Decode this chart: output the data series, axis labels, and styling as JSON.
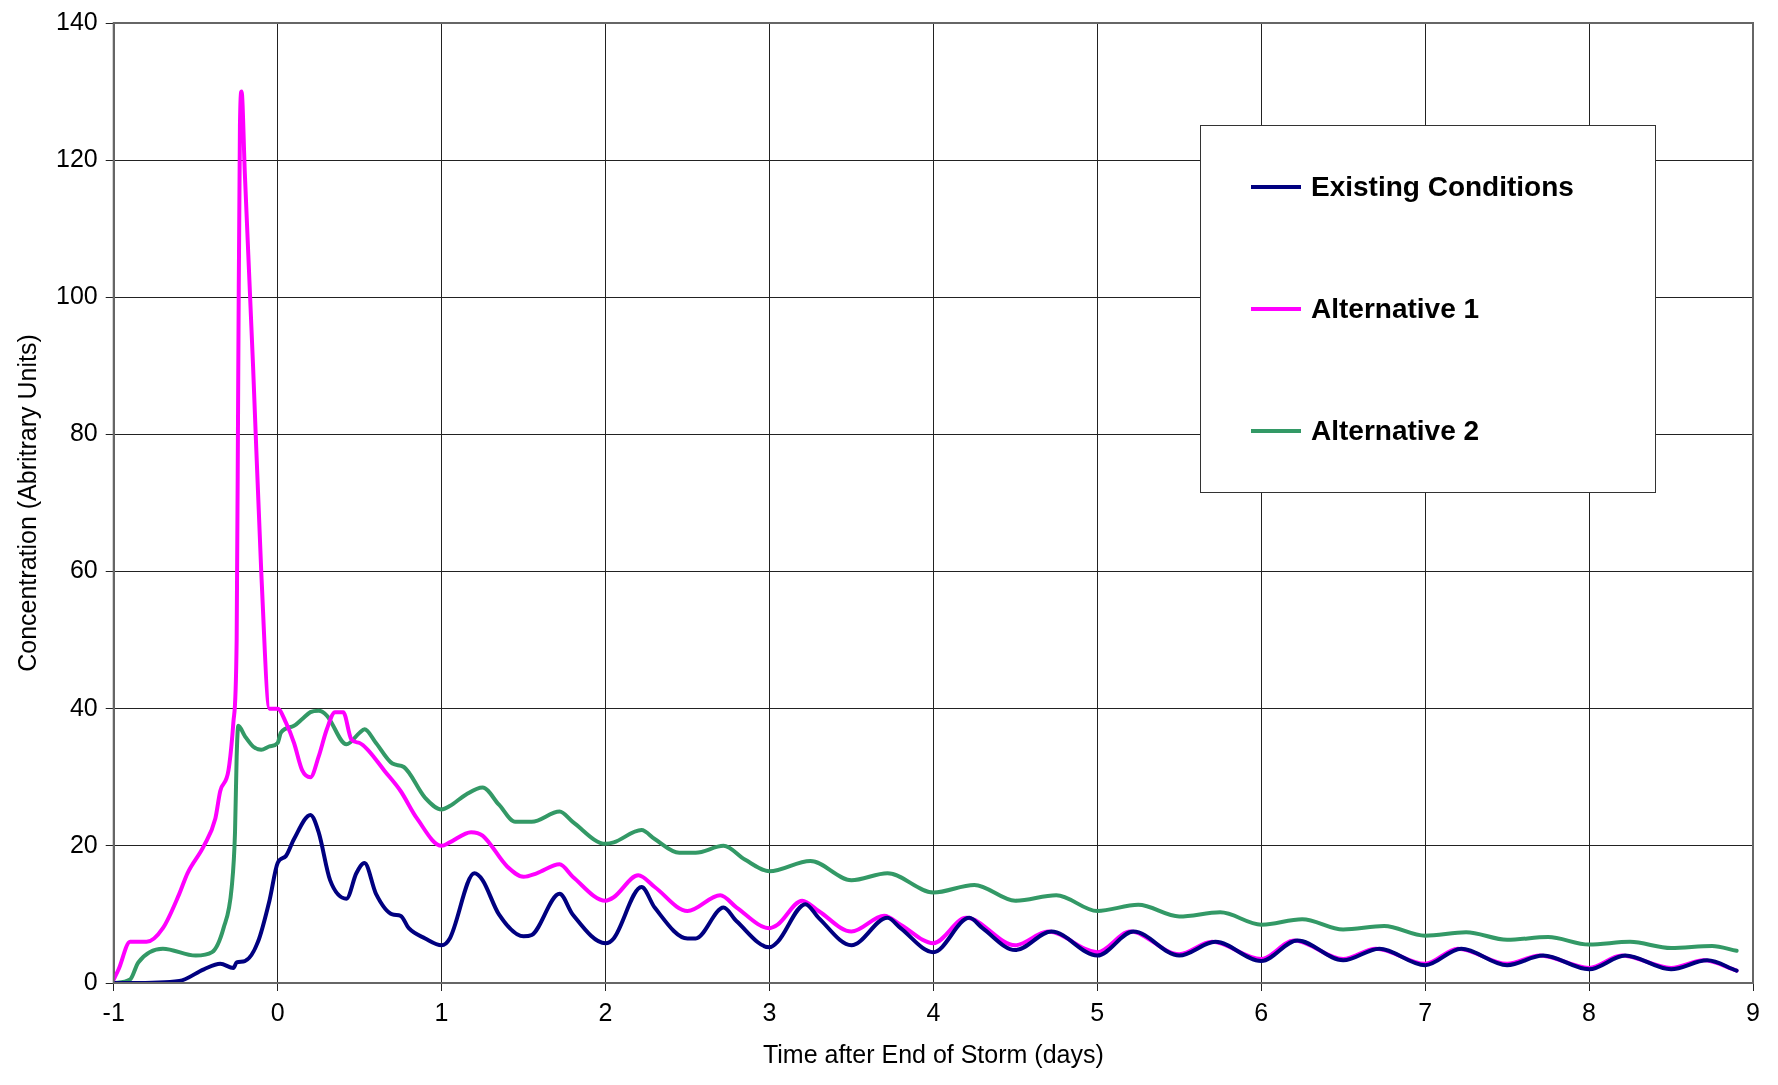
{
  "chart_data": {
    "type": "line",
    "xlabel": "Time after End of Storm (days)",
    "ylabel": "Concentration (Abritrary Units)",
    "xlim": [
      -1,
      9
    ],
    "xticks": [
      -1,
      0,
      1,
      2,
      3,
      4,
      5,
      6,
      7,
      8,
      9
    ],
    "ylim": [
      0,
      140
    ],
    "yticks": [
      0,
      20,
      40,
      60,
      80,
      100,
      120,
      140
    ],
    "grid": true,
    "legend": "top right",
    "marker": "none",
    "line_style": "solid",
    "series": [
      {
        "name": "Existing Conditions",
        "color": "#000080",
        "x": [
          -1,
          -0.9,
          -0.6,
          -0.45,
          -0.35,
          -0.27,
          -0.25,
          -0.2,
          -0.12,
          -0.05,
          0,
          0.05,
          0.1,
          0.2,
          0.25,
          0.32,
          0.42,
          0.48,
          0.53,
          0.6,
          0.7,
          0.75,
          0.8,
          0.9,
          1,
          1.05,
          1.2,
          1.25,
          1.35,
          1.5,
          1.55,
          1.72,
          1.8,
          2,
          2.05,
          2.22,
          2.3,
          2.5,
          2.55,
          2.72,
          2.8,
          3,
          3.05,
          3.22,
          3.3,
          3.5,
          3.72,
          3.8,
          4,
          4.22,
          4.3,
          4.5,
          4.72,
          5,
          5.22,
          5.5,
          5.72,
          6,
          6.22,
          6.5,
          6.72,
          7,
          7.22,
          7.5,
          7.72,
          8,
          8.22,
          8.5,
          8.72,
          8.9
        ],
        "values": [
          0,
          0,
          0.3,
          2,
          2.8,
          2.2,
          3,
          3.2,
          6,
          12,
          17.5,
          18.5,
          21,
          24.5,
          22,
          15,
          12.3,
          16,
          17.5,
          13,
          10,
          9.8,
          8,
          6.5,
          5.5,
          6.5,
          16,
          15,
          10,
          6.8,
          7,
          13,
          10,
          5.8,
          6.5,
          14,
          11,
          6.5,
          6.5,
          11,
          9,
          5.2,
          6,
          11.5,
          9.5,
          5.5,
          9.5,
          8,
          4.5,
          9.5,
          8,
          4.8,
          7.5,
          4,
          7.5,
          4,
          6,
          3.2,
          6.2,
          3.3,
          5,
          2.6,
          5,
          2.6,
          4,
          2,
          4,
          2,
          3.3,
          1.8
        ]
      },
      {
        "name": "Alternative 1",
        "color": "#ff00ff",
        "x": [
          -1,
          -0.97,
          -0.9,
          -0.8,
          -0.7,
          -0.6,
          -0.55,
          -0.45,
          -0.38,
          -0.35,
          -0.3,
          -0.27,
          -0.25,
          -0.24,
          -0.23,
          -0.22,
          -0.2,
          -0.15,
          -0.1,
          -0.05,
          0,
          0.05,
          0.1,
          0.15,
          0.2,
          0.25,
          0.3,
          0.35,
          0.4,
          0.45,
          0.5,
          0.55,
          0.65,
          0.75,
          0.85,
          1,
          1.05,
          1.18,
          1.25,
          1.4,
          1.5,
          1.58,
          1.72,
          1.8,
          2,
          2.05,
          2.2,
          2.3,
          2.5,
          2.7,
          2.8,
          3,
          3.05,
          3.2,
          3.3,
          3.5,
          3.7,
          3.8,
          4,
          4.2,
          4.5,
          4.7,
          5,
          5.2,
          5.5,
          5.7,
          6,
          6.2,
          6.5,
          6.7,
          7,
          7.2,
          7.5,
          7.7,
          8,
          8.2,
          8.5,
          8.7,
          8.9
        ],
        "values": [
          0.5,
          2,
          6,
          6,
          8,
          13,
          16,
          20,
          24,
          28,
          31,
          38,
          50,
          90,
          125,
          130,
          118,
          90,
          60,
          40,
          40,
          38,
          35,
          31,
          30,
          33,
          37,
          39.5,
          39.5,
          35.5,
          35,
          34,
          31,
          28,
          24,
          20,
          20.5,
          22,
          21.5,
          17,
          15.5,
          16,
          17.3,
          15.5,
          12,
          12.5,
          15.7,
          14,
          10.5,
          12.8,
          11,
          8,
          8.5,
          12,
          10.5,
          7.5,
          9.8,
          8.5,
          5.8,
          9.5,
          5.5,
          7.5,
          4.5,
          7.5,
          4.2,
          6,
          3.5,
          6.2,
          3.5,
          5,
          2.8,
          5,
          2.8,
          4,
          2.2,
          4,
          2.2,
          3.3,
          1.8
        ]
      },
      {
        "name": "Alternative 2",
        "color": "#339966",
        "x": [
          -1,
          -0.9,
          -0.85,
          -0.7,
          -0.5,
          -0.4,
          -0.33,
          -0.28,
          -0.26,
          -0.25,
          -0.24,
          -0.2,
          -0.15,
          -0.1,
          -0.05,
          0,
          0.02,
          0.1,
          0.15,
          0.2,
          0.25,
          0.3,
          0.42,
          0.5,
          0.53,
          0.6,
          0.7,
          0.77,
          0.9,
          1,
          1.05,
          1.15,
          1.25,
          1.35,
          1.45,
          1.55,
          1.72,
          1.8,
          2,
          2.05,
          2.22,
          2.3,
          2.45,
          2.55,
          2.72,
          2.85,
          3,
          3.25,
          3.5,
          3.72,
          4,
          4.25,
          4.5,
          4.75,
          5,
          5.25,
          5.5,
          5.75,
          6,
          6.25,
          6.5,
          6.75,
          7,
          7.25,
          7.5,
          7.75,
          8,
          8.25,
          8.5,
          8.75,
          8.9
        ],
        "values": [
          0,
          0.5,
          3,
          5,
          4,
          4.5,
          8,
          14,
          22,
          33,
          37.5,
          36,
          34.5,
          34,
          34.5,
          35,
          36.5,
          37.5,
          38.5,
          39.5,
          39.7,
          39,
          34.8,
          36.5,
          37,
          35,
          32,
          31.5,
          27,
          25.3,
          25.8,
          27.5,
          28.5,
          26,
          23.5,
          23.5,
          25,
          23.5,
          20.3,
          20.5,
          22.3,
          21,
          19,
          19,
          20,
          18,
          16.3,
          17.8,
          15,
          16,
          13.2,
          14.3,
          12,
          12.8,
          10.5,
          11.4,
          9.7,
          10.3,
          8.5,
          9.3,
          7.8,
          8.3,
          6.9,
          7.4,
          6.3,
          6.7,
          5.6,
          6,
          5.1,
          5.4,
          4.7
        ]
      }
    ]
  }
}
